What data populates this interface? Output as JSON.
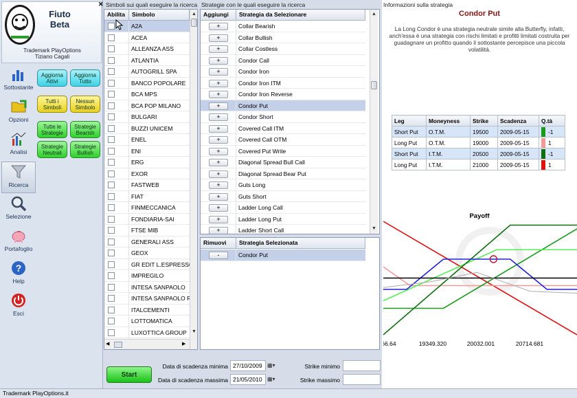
{
  "app": {
    "title_line1": "Fiuto",
    "title_line2": "Beta",
    "trademark_line1": "Trademark PlayOptions",
    "trademark_line2": "Tiziano Cagali"
  },
  "nav": [
    {
      "label": "Sottostante",
      "icon": "bar-chart-icon"
    },
    {
      "label": "Opzioni",
      "icon": "folder-icon"
    },
    {
      "label": "Analisi",
      "icon": "analysis-chart-icon"
    },
    {
      "label": "Ricerca",
      "icon": "funnel-icon"
    },
    {
      "label": "Selezione",
      "icon": "magnifier-icon"
    },
    {
      "label": "Portafoglio",
      "icon": "piggy-bank-icon"
    },
    {
      "label": "Help",
      "icon": "help-icon"
    },
    {
      "label": "Esci",
      "icon": "power-icon"
    }
  ],
  "filter_buttons": [
    {
      "label": "Aggiorna Attivi",
      "color": "#3fd3e6"
    },
    {
      "label": "Aggiorna Tutto",
      "color": "#3fd3e6"
    },
    {
      "label": "Tutti i Simboli",
      "color": "#e8d21c"
    },
    {
      "label": "Nessun Simbolo",
      "color": "#e8d21c"
    },
    {
      "label": "Tutte le Strategie",
      "color": "#2fd12b"
    },
    {
      "label": "Strategie Bearish",
      "color": "#2fd12b"
    },
    {
      "label": "Strategie Neutrali",
      "color": "#2fd12b"
    },
    {
      "label": "Strategie Bullish",
      "color": "#2fd12b"
    }
  ],
  "symbols": {
    "panel_title": "Simboli sui quali eseguire la ricerca",
    "col_enable": "Abilita",
    "col_symbol": "Simbolo",
    "items": [
      "A2A",
      "ACEA",
      "ALLEANZA ASS",
      "ATLANTIA",
      "AUTOGRILL SPA",
      "BANCO POPOLARE",
      "BCA MPS",
      "BCA POP MILANO",
      "BULGARI",
      "BUZZI UNICEM",
      "ENEL",
      "ENI",
      "ERG",
      "EXOR",
      "FASTWEB",
      "FIAT",
      "FINMECCANICA",
      "FONDIARIA-SAI",
      "FTSE MIB",
      "GENERALI ASS",
      "GEOX",
      "GR EDIT L.ESPRESSO",
      "IMPREGILO",
      "INTESA SANPAOLO",
      "INTESA SANPAOLO RSP",
      "ITALCEMENTI",
      "LOTTOMATICA",
      "LUXOTTICA GROUP"
    ],
    "selected_index": 0
  },
  "strategies": {
    "panel_title": "Strategie con le quali eseguire la ricerca",
    "col_add": "Aggiungi",
    "col_strategy": "Strategia da Selezionare",
    "add_symbol": "+",
    "items": [
      "Collar Bearish",
      "Collar Bullish",
      "Collar Costless",
      "Condor Call",
      "Condor Iron",
      "Condor Iron ITM",
      "Condor Iron Reverse",
      "Condor Put",
      "Condor Short",
      "Covered Call ITM",
      "Covered Call OTM",
      "Covered Put Write",
      "Diagonal Spread  Bull Call",
      "Diagonal Spread Bear Put",
      "Guts Long",
      "Guts Short",
      "Ladder Long Call",
      "Ladder Long Put",
      "Ladder Short Call"
    ],
    "selected_index": 7
  },
  "selected": {
    "col_remove": "Rimuovi",
    "col_strategy": "Strategia Selezionata",
    "remove_symbol": "-",
    "items": [
      "Condor Put"
    ]
  },
  "info": {
    "panel_title": "Informazioni sulla strategia",
    "strategy_name": "Condor Put",
    "description": "La Long Condor è una strategia neutrale simile alla Butterfly, infatti, anch'essa è una strategia con rischi limitati e profitti limitati costruita per guadagnare un profitto quando il sottostante percepisce una piccola volatilità.",
    "legs_headers": [
      "Leg",
      "Moneyness",
      "Strike",
      "Scadenza",
      "Q.tà"
    ],
    "legs": [
      {
        "leg": "Short Put",
        "moneyness": "O.T.M.",
        "strike": "19500",
        "scadenza": "2009-05-15",
        "qty": "-1",
        "color": "#1a9a1a"
      },
      {
        "leg": "Long Put",
        "moneyness": "O.T.M.",
        "strike": "19000",
        "scadenza": "2009-05-15",
        "qty": "1",
        "color": "#f29a9a"
      },
      {
        "leg": "Short Put",
        "moneyness": "I.T.M.",
        "strike": "20500",
        "scadenza": "2009-05-15",
        "qty": "-1",
        "color": "#0d6e0d"
      },
      {
        "leg": "Long Put",
        "moneyness": "I.T.M.",
        "strike": "21000",
        "scadenza": "2009-05-15",
        "qty": "1",
        "color": "#e01010"
      }
    ]
  },
  "chart_data": {
    "type": "line",
    "title": "Payoff",
    "x_ticks": [
      "66.64",
      "19349.320",
      "20032.001",
      "20714.681"
    ],
    "xlim": [
      18600,
      21500
    ],
    "ylim": [
      -3,
      3
    ],
    "series": [
      {
        "color": "#e01010",
        "x": [
          18600,
          21500
        ],
        "y": [
          3.0,
          -3.0
        ]
      },
      {
        "color": "#f29a9a",
        "x": [
          18600,
          19000,
          21500
        ],
        "y": [
          0.6,
          -0.4,
          -0.4
        ]
      },
      {
        "color": "#1a9a1a",
        "x": [
          18600,
          19500,
          21500
        ],
        "y": [
          -1.6,
          -1.6,
          2.6
        ]
      },
      {
        "color": "#55ee55",
        "x": [
          18600,
          20300,
          21500
        ],
        "y": [
          -1.2,
          1.5,
          1.5
        ]
      },
      {
        "color": "#0d6e0d",
        "x": [
          18600,
          20500,
          21500
        ],
        "y": [
          -3.0,
          2.8,
          2.8
        ]
      },
      {
        "color": "#2222dd",
        "x": [
          18600,
          18950,
          19500,
          20500,
          21050,
          21500
        ],
        "y": [
          -0.6,
          -0.6,
          1.0,
          1.0,
          -0.6,
          -0.6
        ]
      },
      {
        "color": "#000000",
        "x": [
          18600,
          21500
        ],
        "y": [
          0,
          0
        ]
      },
      {
        "color": "#aaaaaa",
        "x": [
          18600,
          19300,
          20000,
          20800,
          21500
        ],
        "y": [
          -0.5,
          -0.2,
          0.3,
          -0.7,
          -0.8
        ]
      }
    ],
    "marker": {
      "x": 20250,
      "y": 1.0
    }
  },
  "bottom": {
    "label_min": "Data di scadenza minima",
    "date_min": "27/10/2009",
    "label_max": "Data di scadenza massima",
    "date_max": "21/05/2010",
    "strike_min_label": "Strike minimo",
    "strike_max_label": "Strike massimo",
    "strike_min_value": "",
    "strike_max_value": "",
    "start_label": "Start",
    "calendar_icon": "calendar-icon"
  },
  "status": "Trademark PlayOptions.it"
}
